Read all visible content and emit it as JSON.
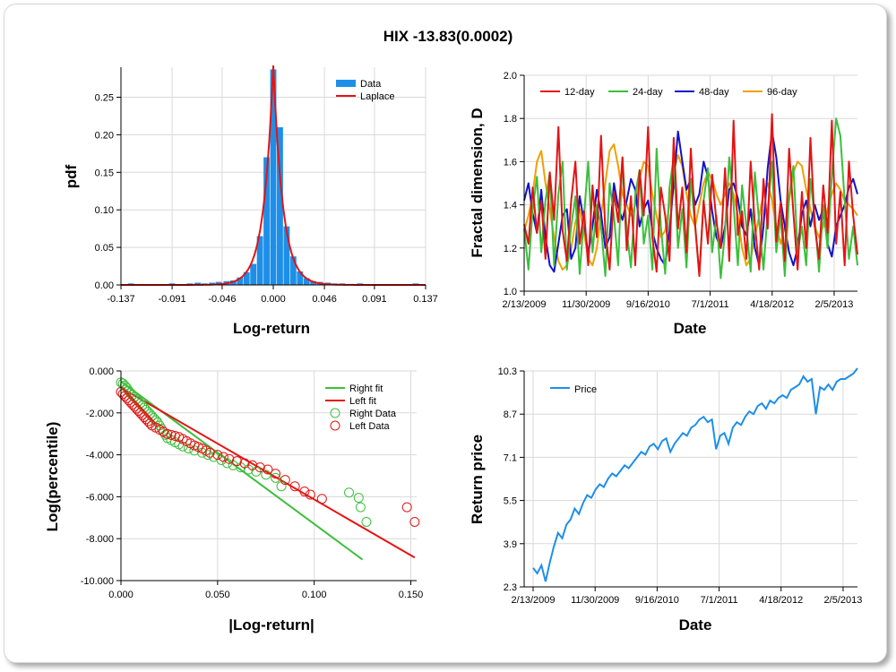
{
  "title": "HIX -13.83(0.0002)",
  "colors": {
    "blue": "#1e8fe8",
    "red": "#e41414",
    "green": "#3cbf3c",
    "navy": "#1212c8",
    "orange": "#f0a000",
    "grid": "#d9d9d9"
  },
  "chart_data": [
    {
      "type": "bar",
      "xlabel": "Log-return",
      "ylabel": "pdf",
      "xticks": [
        "-0.137",
        "-0.091",
        "-0.046",
        "0.000",
        "0.046",
        "0.091",
        "0.137"
      ],
      "xtick_values": [
        -0.137,
        -0.091,
        -0.046,
        0.0,
        0.046,
        0.091,
        0.137
      ],
      "yticks": [
        "0.00",
        "0.05",
        "0.10",
        "0.15",
        "0.20",
        "0.25"
      ],
      "ytick_values": [
        0,
        0.05,
        0.1,
        0.15,
        0.2,
        0.25
      ],
      "xlim": [
        -0.137,
        0.137
      ],
      "ylim": [
        0,
        0.29
      ],
      "legend": [
        "Data",
        "Laplace"
      ],
      "bins": [
        [
          -0.128,
          0.002
        ],
        [
          -0.091,
          0.002
        ],
        [
          -0.075,
          0.002
        ],
        [
          -0.068,
          0.003
        ],
        [
          -0.062,
          0.002
        ],
        [
          -0.055,
          0.003
        ],
        [
          -0.049,
          0.004
        ],
        [
          -0.042,
          0.005
        ],
        [
          -0.036,
          0.006
        ],
        [
          -0.03,
          0.01
        ],
        [
          -0.024,
          0.017
        ],
        [
          -0.018,
          0.028
        ],
        [
          -0.012,
          0.065
        ],
        [
          -0.006,
          0.17
        ],
        [
          0.0,
          0.287
        ],
        [
          0.006,
          0.21
        ],
        [
          0.012,
          0.078
        ],
        [
          0.018,
          0.038
        ],
        [
          0.024,
          0.018
        ],
        [
          0.03,
          0.009
        ],
        [
          0.036,
          0.005
        ],
        [
          0.042,
          0.004
        ],
        [
          0.049,
          0.003
        ],
        [
          0.055,
          0.002
        ],
        [
          0.062,
          0.002
        ],
        [
          0.078,
          0.002
        ],
        [
          0.091,
          0.001
        ],
        [
          0.128,
          0.002
        ]
      ],
      "laplace": {
        "mu": 0.0,
        "peak": 0.295,
        "b": 0.0085
      }
    },
    {
      "type": "line",
      "xlabel": "Date",
      "ylabel": "Fractal dimension, D",
      "xticks": [
        "2/13/2009",
        "11/30/2009",
        "9/16/2010",
        "7/1/2011",
        "4/18/2012",
        "2/5/2013"
      ],
      "yticks": [
        "1.0",
        "1.2",
        "1.4",
        "1.6",
        "1.8",
        "2.0"
      ],
      "ytick_values": [
        1.0,
        1.2,
        1.4,
        1.6,
        1.8,
        2.0
      ],
      "ylim": [
        1.0,
        2.0
      ],
      "xlim": [
        0,
        1
      ],
      "legend": [
        "12-day",
        "24-day",
        "48-day",
        "96-day"
      ],
      "series": [
        {
          "name": "12-day",
          "color": "red",
          "values": [
            1.31,
            1.22,
            1.48,
            1.27,
            1.42,
            1.15,
            1.55,
            1.33,
            1.76,
            1.28,
            1.14,
            1.42,
            1.6,
            1.22,
            1.37,
            1.12,
            1.49,
            1.25,
            1.72,
            1.28,
            1.1,
            1.46,
            1.32,
            1.62,
            1.19,
            1.44,
            1.12,
            1.56,
            1.35,
            1.76,
            1.25,
            1.09,
            1.48,
            1.35,
            1.14,
            1.71,
            1.29,
            1.48,
            1.18,
            1.66,
            1.31,
            1.07,
            1.42,
            1.22,
            1.54,
            1.32,
            1.2,
            1.57,
            1.14,
            1.79,
            1.26,
            1.37,
            1.15,
            1.6,
            1.31,
            1.1,
            1.52,
            1.29,
            1.82,
            1.23,
            1.41,
            1.14,
            1.66,
            1.36,
            1.1,
            1.46,
            1.2,
            1.71,
            1.3,
            1.15,
            1.49,
            1.27,
            1.79,
            1.22,
            1.46,
            1.12,
            1.6,
            1.35,
            1.17
          ]
        },
        {
          "name": "24-day",
          "color": "green",
          "values": [
            1.29,
            1.1,
            1.38,
            1.53,
            1.18,
            1.42,
            1.55,
            1.12,
            1.45,
            1.6,
            1.1,
            1.3,
            1.44,
            1.08,
            1.35,
            1.6,
            1.18,
            1.4,
            1.3,
            1.07,
            1.5,
            1.35,
            1.12,
            1.62,
            1.28,
            1.11,
            1.45,
            1.56,
            1.22,
            1.35,
            1.1,
            1.66,
            1.3,
            1.08,
            1.48,
            1.62,
            1.2,
            1.38,
            1.11,
            1.52,
            1.3,
            1.08,
            1.42,
            1.57,
            1.18,
            1.35,
            1.06,
            1.28,
            1.62,
            1.4,
            1.12,
            1.49,
            1.3,
            1.09,
            1.55,
            1.32,
            1.1,
            1.37,
            1.6,
            1.18,
            1.35,
            1.07,
            1.44,
            1.58,
            1.18,
            1.3,
            1.12,
            1.52,
            1.34,
            1.09,
            1.4,
            1.2,
            1.54,
            1.8,
            1.72,
            1.42,
            1.15,
            1.3,
            1.12
          ]
        },
        {
          "name": "48-day",
          "color": "navy",
          "values": [
            1.42,
            1.5,
            1.36,
            1.27,
            1.47,
            1.25,
            1.12,
            1.09,
            1.22,
            1.35,
            1.38,
            1.15,
            1.2,
            1.44,
            1.32,
            1.17,
            1.3,
            1.47,
            1.36,
            1.2,
            1.25,
            1.5,
            1.39,
            1.33,
            1.42,
            1.52,
            1.47,
            1.3,
            1.38,
            1.42,
            1.28,
            1.2,
            1.15,
            1.12,
            1.28,
            1.5,
            1.74,
            1.6,
            1.47,
            1.52,
            1.4,
            1.45,
            1.6,
            1.53,
            1.37,
            1.25,
            1.2,
            1.3,
            1.47,
            1.5,
            1.43,
            1.3,
            1.26,
            1.38,
            1.2,
            1.12,
            1.3,
            1.57,
            1.74,
            1.62,
            1.42,
            1.3,
            1.18,
            1.12,
            1.2,
            1.36,
            1.42,
            1.3,
            1.4,
            1.33,
            1.38,
            1.22,
            1.16,
            1.3,
            1.35,
            1.4,
            1.48,
            1.52,
            1.45
          ]
        },
        {
          "name": "96-day",
          "color": "orange",
          "values": [
            1.28,
            1.35,
            1.45,
            1.6,
            1.65,
            1.5,
            1.38,
            1.25,
            1.14,
            1.1,
            1.12,
            1.2,
            1.32,
            1.38,
            1.27,
            1.15,
            1.12,
            1.2,
            1.35,
            1.5,
            1.65,
            1.68,
            1.58,
            1.45,
            1.4,
            1.35,
            1.4,
            1.52,
            1.6,
            1.58,
            1.45,
            1.35,
            1.25,
            1.28,
            1.4,
            1.55,
            1.63,
            1.58,
            1.45,
            1.35,
            1.3,
            1.4,
            1.5,
            1.55,
            1.52,
            1.45,
            1.4,
            1.45,
            1.5,
            1.45,
            1.35,
            1.2,
            1.12,
            1.15,
            1.25,
            1.35,
            1.45,
            1.5,
            1.42,
            1.3,
            1.22,
            1.3,
            1.42,
            1.55,
            1.6,
            1.58,
            1.47,
            1.38,
            1.3,
            1.25,
            1.3,
            1.38,
            1.45,
            1.5,
            1.47,
            1.42,
            1.4,
            1.38,
            1.35
          ]
        }
      ]
    },
    {
      "type": "scatter",
      "xlabel": "|Log-return|",
      "ylabel": "Log(percentile)",
      "xticks": [
        "0.000",
        "0.050",
        "0.100",
        "0.150"
      ],
      "xtick_values": [
        0,
        0.05,
        0.1,
        0.15
      ],
      "yticks": [
        "0.000",
        "-2.000",
        "-4.000",
        "-6.000",
        "-8.000",
        "-10.000"
      ],
      "ytick_values": [
        0,
        -2,
        -4,
        -6,
        -8,
        -10
      ],
      "xlim": [
        0,
        0.153
      ],
      "ylim": [
        -10,
        0
      ],
      "legend": [
        "Right fit",
        "Left fit",
        "Right Data",
        "Left Data"
      ],
      "right_fit": [
        [
          0.0,
          -0.5
        ],
        [
          0.125,
          -9.0
        ]
      ],
      "left_fit": [
        [
          0.0,
          -0.8
        ],
        [
          0.152,
          -8.9
        ]
      ],
      "right_data": [
        [
          0.0,
          -0.55
        ],
        [
          0.001,
          -0.6
        ],
        [
          0.002,
          -0.7
        ],
        [
          0.003,
          -0.8
        ],
        [
          0.004,
          -0.95
        ],
        [
          0.005,
          -1.05
        ],
        [
          0.006,
          -1.15
        ],
        [
          0.007,
          -1.25
        ],
        [
          0.008,
          -1.35
        ],
        [
          0.009,
          -1.45
        ],
        [
          0.01,
          -1.55
        ],
        [
          0.011,
          -1.65
        ],
        [
          0.012,
          -1.75
        ],
        [
          0.013,
          -1.85
        ],
        [
          0.014,
          -1.95
        ],
        [
          0.015,
          -2.05
        ],
        [
          0.016,
          -2.15
        ],
        [
          0.017,
          -2.25
        ],
        [
          0.018,
          -2.35
        ],
        [
          0.019,
          -2.45
        ],
        [
          0.02,
          -2.6
        ],
        [
          0.021,
          -2.75
        ],
        [
          0.022,
          -2.9
        ],
        [
          0.023,
          -3.05
        ],
        [
          0.024,
          -3.2
        ],
        [
          0.026,
          -3.3
        ],
        [
          0.028,
          -3.4
        ],
        [
          0.03,
          -3.5
        ],
        [
          0.032,
          -3.6
        ],
        [
          0.035,
          -3.7
        ],
        [
          0.038,
          -3.8
        ],
        [
          0.042,
          -3.9
        ],
        [
          0.045,
          -4.0
        ],
        [
          0.048,
          -4.1
        ],
        [
          0.052,
          -4.25
        ],
        [
          0.055,
          -4.4
        ],
        [
          0.058,
          -4.5
        ],
        [
          0.062,
          -4.6
        ],
        [
          0.066,
          -4.7
        ],
        [
          0.07,
          -4.8
        ],
        [
          0.075,
          -4.95
        ],
        [
          0.08,
          -5.1
        ],
        [
          0.083,
          -5.5
        ],
        [
          0.118,
          -5.8
        ],
        [
          0.123,
          -6.05
        ],
        [
          0.124,
          -6.5
        ],
        [
          0.127,
          -7.2
        ]
      ],
      "left_data": [
        [
          0.0,
          -1.0
        ],
        [
          0.001,
          -1.1
        ],
        [
          0.002,
          -1.2
        ],
        [
          0.003,
          -1.3
        ],
        [
          0.004,
          -1.4
        ],
        [
          0.005,
          -1.5
        ],
        [
          0.006,
          -1.6
        ],
        [
          0.007,
          -1.7
        ],
        [
          0.008,
          -1.8
        ],
        [
          0.009,
          -1.9
        ],
        [
          0.01,
          -2.0
        ],
        [
          0.011,
          -2.1
        ],
        [
          0.012,
          -2.2
        ],
        [
          0.013,
          -2.3
        ],
        [
          0.014,
          -2.4
        ],
        [
          0.015,
          -2.5
        ],
        [
          0.016,
          -2.6
        ],
        [
          0.018,
          -2.7
        ],
        [
          0.02,
          -2.8
        ],
        [
          0.022,
          -2.9
        ],
        [
          0.024,
          -3.0
        ],
        [
          0.026,
          -3.05
        ],
        [
          0.028,
          -3.1
        ],
        [
          0.03,
          -3.15
        ],
        [
          0.032,
          -3.25
        ],
        [
          0.034,
          -3.35
        ],
        [
          0.036,
          -3.45
        ],
        [
          0.038,
          -3.55
        ],
        [
          0.04,
          -3.62
        ],
        [
          0.042,
          -3.7
        ],
        [
          0.044,
          -3.8
        ],
        [
          0.046,
          -3.9
        ],
        [
          0.05,
          -4.0
        ],
        [
          0.053,
          -4.1
        ],
        [
          0.056,
          -4.2
        ],
        [
          0.06,
          -4.3
        ],
        [
          0.064,
          -4.4
        ],
        [
          0.068,
          -4.5
        ],
        [
          0.072,
          -4.6
        ],
        [
          0.076,
          -4.7
        ],
        [
          0.08,
          -4.9
        ],
        [
          0.085,
          -5.2
        ],
        [
          0.09,
          -5.5
        ],
        [
          0.095,
          -5.75
        ],
        [
          0.098,
          -5.9
        ],
        [
          0.104,
          -6.1
        ],
        [
          0.148,
          -6.5
        ],
        [
          0.152,
          -7.2
        ]
      ]
    },
    {
      "type": "line",
      "xlabel": "Date",
      "ylabel": "Return price",
      "xticks": [
        "2/13/2009",
        "11/30/2009",
        "9/16/2010",
        "7/1/2011",
        "4/18/2012",
        "2/5/2013"
      ],
      "yticks": [
        "2.3",
        "3.9",
        "5.5",
        "7.1",
        "8.7",
        "10.3"
      ],
      "ytick_values": [
        2.3,
        3.9,
        5.5,
        7.1,
        8.7,
        10.3
      ],
      "ylim": [
        2.3,
        10.3
      ],
      "xlim": [
        0,
        1
      ],
      "legend": [
        "Price"
      ],
      "series": [
        {
          "name": "Price",
          "color": "blue",
          "values": [
            3.0,
            2.8,
            3.1,
            2.5,
            3.2,
            3.8,
            4.3,
            4.1,
            4.6,
            4.8,
            5.2,
            5.0,
            5.4,
            5.7,
            5.6,
            5.9,
            6.1,
            6.0,
            6.3,
            6.5,
            6.4,
            6.6,
            6.8,
            6.7,
            6.9,
            7.1,
            7.3,
            7.2,
            7.5,
            7.6,
            7.4,
            7.7,
            7.8,
            7.3,
            7.6,
            7.8,
            8.0,
            7.9,
            8.2,
            8.3,
            8.5,
            8.6,
            8.4,
            8.5,
            7.4,
            7.9,
            8.0,
            7.6,
            8.2,
            8.4,
            8.3,
            8.6,
            8.8,
            8.7,
            9.0,
            9.1,
            8.9,
            9.2,
            9.1,
            9.3,
            9.4,
            9.3,
            9.6,
            9.7,
            9.8,
            10.1,
            9.9,
            10.0,
            8.7,
            9.7,
            9.6,
            9.8,
            9.6,
            9.9,
            10.0,
            10.0,
            10.1,
            10.2,
            10.4
          ]
        }
      ]
    }
  ]
}
